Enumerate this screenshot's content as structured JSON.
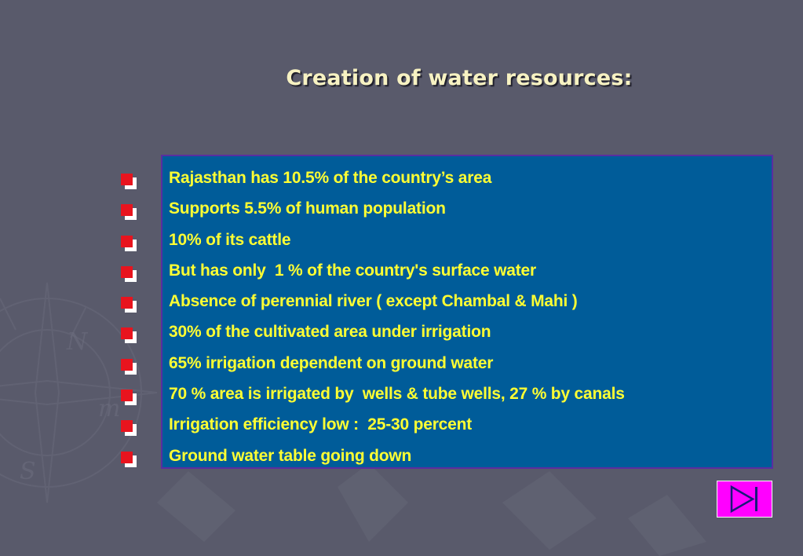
{
  "slide": {
    "title": "Creation of water resources:"
  },
  "bullet_items": [
    "Rajasthan has 10.5% of the country’s area",
    "Supports 5.5% of human population",
    "10% of its cattle",
    "But has only  1 % of the country's surface water",
    "Absence of perennial river ( except Chambal & Mahi )",
    "30% of the cultivated area under irrigation",
    "65% irrigation dependent on ground water",
    "70 % area is irrigated by  wells & tube wells, 27 % by canals",
    "Irrigation efficiency low :  25-30 percent",
    "Ground water table going down"
  ],
  "navigation": {
    "next_icon": "play-to-end-icon"
  },
  "colors": {
    "background": "#595a6b",
    "title": "#f7f2c2",
    "box_fill": "#005c99",
    "box_border": "#5a2ea0",
    "item_text": "#ffff33",
    "bullet": "#e8141e",
    "nav_button": "#ff00ff"
  }
}
